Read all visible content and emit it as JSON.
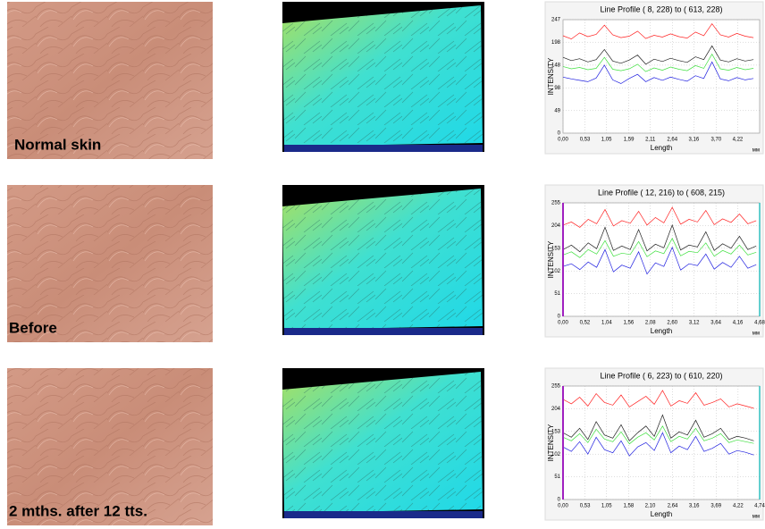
{
  "panels": [
    {
      "label": "Normal skin"
    },
    {
      "label": "Before"
    },
    {
      "label": "2 mths. after  12 tts."
    }
  ],
  "chart_data": [
    {
      "type": "line",
      "title": "Line Profile ( 8, 228) to ( 613, 228)",
      "x_label": "Length",
      "y_label": "INTENSITY",
      "unit": "мм",
      "x": [
        0,
        0.2,
        0.4,
        0.6,
        0.8,
        1.0,
        1.2,
        1.4,
        1.6,
        1.8,
        2.0,
        2.2,
        2.4,
        2.6,
        2.8,
        3.0,
        3.2,
        3.4,
        3.6,
        3.8,
        4.0,
        4.2,
        4.4,
        4.6
      ],
      "xlim": [
        0,
        4.75
      ],
      "ylim": [
        0,
        247
      ],
      "yticks": [
        0,
        49,
        98,
        148,
        198,
        247
      ],
      "xticks": [
        {
          "value": 0,
          "label": "0,00"
        },
        {
          "value": 0.53,
          "label": "0,53"
        },
        {
          "value": 1.05,
          "label": "1,05"
        },
        {
          "value": 1.59,
          "label": "1,59"
        },
        {
          "value": 2.11,
          "label": "2,11"
        },
        {
          "value": 2.64,
          "label": "2,64"
        },
        {
          "value": 3.16,
          "label": "3,16"
        },
        {
          "value": 3.7,
          "label": "3,70"
        },
        {
          "value": 4.22,
          "label": "4,22"
        }
      ],
      "grid": true,
      "cursors": false,
      "series": [
        {
          "color": "#ff2020",
          "values": [
            212,
            205,
            218,
            210,
            215,
            235,
            214,
            208,
            211,
            222,
            206,
            213,
            209,
            216,
            210,
            207,
            220,
            212,
            238,
            214,
            209,
            217,
            211,
            208
          ]
        },
        {
          "color": "#202020",
          "values": [
            165,
            158,
            162,
            155,
            160,
            182,
            157,
            152,
            159,
            170,
            150,
            161,
            156,
            163,
            158,
            154,
            166,
            160,
            190,
            159,
            155,
            162,
            157,
            160
          ]
        },
        {
          "color": "#40e040",
          "values": [
            145,
            140,
            143,
            138,
            141,
            165,
            139,
            136,
            140,
            150,
            134,
            142,
            137,
            144,
            139,
            136,
            147,
            141,
            172,
            140,
            137,
            143,
            138,
            141
          ]
        },
        {
          "color": "#2020e0",
          "values": [
            122,
            118,
            115,
            112,
            120,
            148,
            116,
            108,
            119,
            128,
            112,
            121,
            115,
            122,
            117,
            113,
            125,
            119,
            155,
            118,
            114,
            121,
            116,
            119
          ]
        }
      ]
    },
    {
      "type": "line",
      "title": "Line Profile ( 12, 216) to ( 608, 215)",
      "x_label": "Length",
      "y_label": "INTENSITY",
      "unit": "мм",
      "x": [
        0,
        0.2,
        0.4,
        0.6,
        0.8,
        1.0,
        1.2,
        1.4,
        1.6,
        1.8,
        2.0,
        2.2,
        2.4,
        2.6,
        2.8,
        3.0,
        3.2,
        3.4,
        3.6,
        3.8,
        4.0,
        4.2,
        4.4,
        4.6
      ],
      "xlim": [
        0,
        4.68
      ],
      "ylim": [
        0,
        255
      ],
      "yticks": [
        0,
        51,
        102,
        153,
        204,
        255
      ],
      "xticks": [
        {
          "value": 0,
          "label": "0,00"
        },
        {
          "value": 0.52,
          "label": "0,52"
        },
        {
          "value": 1.04,
          "label": "1,04"
        },
        {
          "value": 1.56,
          "label": "1,56"
        },
        {
          "value": 2.08,
          "label": "2,08"
        },
        {
          "value": 2.6,
          "label": "2,60"
        },
        {
          "value": 3.12,
          "label": "3,12"
        },
        {
          "value": 3.64,
          "label": "3,64"
        },
        {
          "value": 4.16,
          "label": "4,16"
        },
        {
          "value": 4.68,
          "label": "4,68"
        }
      ],
      "grid": true,
      "cursors": true,
      "series": [
        {
          "color": "#ff2020",
          "values": [
            205,
            212,
            200,
            218,
            208,
            240,
            203,
            215,
            209,
            236,
            205,
            222,
            210,
            245,
            207,
            218,
            212,
            238,
            206,
            219,
            211,
            230,
            208,
            215
          ]
        },
        {
          "color": "#202020",
          "values": [
            150,
            160,
            145,
            165,
            152,
            200,
            148,
            158,
            150,
            195,
            147,
            162,
            154,
            205,
            149,
            160,
            156,
            190,
            148,
            163,
            153,
            180,
            150,
            158
          ]
        },
        {
          "color": "#40e040",
          "values": [
            138,
            145,
            132,
            150,
            140,
            170,
            135,
            142,
            139,
            168,
            134,
            147,
            141,
            175,
            136,
            146,
            143,
            165,
            135,
            148,
            140,
            160,
            138,
            144
          ]
        },
        {
          "color": "#2020e0",
          "values": [
            112,
            118,
            105,
            122,
            110,
            150,
            100,
            115,
            108,
            145,
            95,
            120,
            112,
            155,
            104,
            118,
            114,
            140,
            106,
            121,
            110,
            135,
            108,
            116
          ]
        }
      ]
    },
    {
      "type": "line",
      "title": "Line Profile ( 6, 223) to ( 610, 220)",
      "x_label": "Length",
      "y_label": "INTENSITY",
      "unit": "мм",
      "x": [
        0,
        0.2,
        0.4,
        0.6,
        0.8,
        1.0,
        1.2,
        1.4,
        1.6,
        1.8,
        2.0,
        2.2,
        2.4,
        2.6,
        2.8,
        3.0,
        3.2,
        3.4,
        3.6,
        3.8,
        4.0,
        4.2,
        4.4,
        4.6
      ],
      "xlim": [
        0,
        4.74
      ],
      "ylim": [
        0,
        255
      ],
      "yticks": [
        0,
        51,
        102,
        153,
        204,
        255
      ],
      "xticks": [
        {
          "value": 0,
          "label": "0,00"
        },
        {
          "value": 0.53,
          "label": "0,53"
        },
        {
          "value": 1.05,
          "label": "1,05"
        },
        {
          "value": 1.58,
          "label": "1,58"
        },
        {
          "value": 2.1,
          "label": "2,10"
        },
        {
          "value": 2.64,
          "label": "2,64"
        },
        {
          "value": 3.16,
          "label": "3,16"
        },
        {
          "value": 3.69,
          "label": "3,69"
        },
        {
          "value": 4.22,
          "label": "4,22"
        },
        {
          "value": 4.74,
          "label": "4,74"
        }
      ],
      "grid": true,
      "cursors": true,
      "series": [
        {
          "color": "#ff2020",
          "values": [
            225,
            215,
            230,
            210,
            238,
            218,
            212,
            235,
            208,
            220,
            232,
            214,
            245,
            210,
            222,
            216,
            240,
            212,
            218,
            226,
            208,
            215,
            210,
            205
          ]
        },
        {
          "color": "#202020",
          "values": [
            150,
            140,
            160,
            135,
            175,
            145,
            138,
            168,
            132,
            150,
            165,
            142,
            190,
            138,
            152,
            145,
            178,
            140,
            148,
            160,
            135,
            142,
            138,
            132
          ]
        },
        {
          "color": "#40e040",
          "values": [
            140,
            132,
            148,
            128,
            158,
            136,
            130,
            152,
            125,
            140,
            150,
            134,
            165,
            130,
            142,
            136,
            160,
            132,
            138,
            148,
            128,
            134,
            130,
            126
          ]
        },
        {
          "color": "#2020e0",
          "values": [
            118,
            108,
            130,
            102,
            140,
            112,
            105,
            132,
            98,
            118,
            128,
            110,
            150,
            105,
            120,
            112,
            142,
            108,
            115,
            126,
            102,
            110,
            106,
            100
          ]
        }
      ]
    }
  ]
}
